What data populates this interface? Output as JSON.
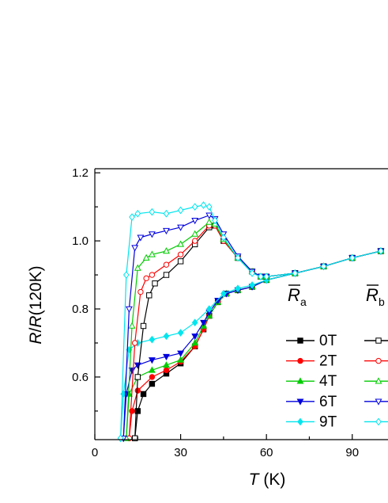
{
  "chart_data": {
    "type": "line",
    "ylabel": [
      "R",
      "/",
      "R",
      "(120K)"
    ],
    "xlabel": [
      "T",
      " (K)"
    ],
    "xlim": [
      0,
      102.5
    ],
    "xticks": [
      0,
      30,
      60,
      90
    ],
    "xminorticks": [
      15,
      45,
      75
    ],
    "ylim": [
      0.416,
      1.212
    ],
    "yticks": [
      0.6,
      0.8,
      {
        "value": 1,
        "label": "1.0"
      },
      1.2
    ],
    "yminorticks": [
      0.5,
      0.7,
      0.9,
      1.1
    ],
    "legend_groups": [
      {
        "symbol": "R",
        "subscript": "a"
      },
      {
        "symbol": "R",
        "subscript": "b"
      }
    ],
    "series": [
      {
        "name": "0T",
        "group": 0,
        "color": "#000000",
        "marker": "square",
        "filled": true,
        "x": [
          14,
          15,
          17,
          20,
          25,
          30,
          35,
          38,
          40,
          43,
          46,
          50,
          55,
          60,
          70,
          80,
          90,
          100
        ],
        "values": [
          0.42,
          0.5,
          0.55,
          0.58,
          0.61,
          0.64,
          0.69,
          0.74,
          0.78,
          0.82,
          0.845,
          0.855,
          0.865,
          0.885,
          0.905,
          0.925,
          0.95,
          0.97
        ]
      },
      {
        "name": "2T",
        "group": 0,
        "color": "#ff0000",
        "marker": "circle",
        "filled": true,
        "x": [
          12,
          13,
          15,
          20,
          25,
          30,
          35,
          38,
          40,
          43,
          46,
          50,
          55,
          60,
          70,
          80,
          90,
          100
        ],
        "values": [
          0.42,
          0.5,
          0.56,
          0.6,
          0.62,
          0.645,
          0.69,
          0.74,
          0.78,
          0.82,
          0.845,
          0.855,
          0.865,
          0.885,
          0.905,
          0.925,
          0.95,
          0.97
        ]
      },
      {
        "name": "4T",
        "group": 0,
        "color": "#00cc00",
        "marker": "triangle-up",
        "filled": true,
        "x": [
          11,
          12,
          15,
          20,
          25,
          30,
          35,
          38,
          40,
          43,
          46,
          50,
          55,
          60,
          70,
          80,
          90,
          100
        ],
        "values": [
          0.42,
          0.55,
          0.6,
          0.62,
          0.635,
          0.65,
          0.7,
          0.75,
          0.78,
          0.82,
          0.845,
          0.855,
          0.865,
          0.885,
          0.905,
          0.925,
          0.95,
          0.97
        ]
      },
      {
        "name": "6T",
        "group": 0,
        "color": "#0000dd",
        "marker": "triangle-down",
        "filled": true,
        "x": [
          10,
          11,
          13,
          15,
          20,
          25,
          30,
          35,
          38,
          40,
          43,
          46,
          50,
          55,
          60,
          70,
          80,
          90,
          100
        ],
        "values": [
          0.42,
          0.55,
          0.62,
          0.635,
          0.65,
          0.66,
          0.67,
          0.72,
          0.76,
          0.79,
          0.825,
          0.845,
          0.855,
          0.865,
          0.885,
          0.905,
          0.925,
          0.95,
          0.97
        ]
      },
      {
        "name": "9T",
        "group": 0,
        "color": "#00e5ee",
        "marker": "diamond",
        "filled": true,
        "x": [
          9,
          10,
          12,
          15,
          20,
          25,
          30,
          35,
          40,
          45,
          50,
          55,
          60,
          70,
          80,
          90,
          100
        ],
        "values": [
          0.42,
          0.55,
          0.68,
          0.7,
          0.71,
          0.72,
          0.73,
          0.76,
          0.8,
          0.845,
          0.86,
          0.87,
          0.885,
          0.905,
          0.925,
          0.95,
          0.97
        ]
      },
      {
        "group": 1,
        "color": "#000000",
        "marker": "square",
        "filled": false,
        "x": [
          14,
          15,
          17,
          19,
          21,
          25,
          30,
          35,
          40,
          42,
          45,
          50,
          55,
          58,
          60,
          70,
          80,
          90,
          100
        ],
        "values": [
          0.42,
          0.6,
          0.75,
          0.84,
          0.875,
          0.9,
          0.94,
          0.99,
          1.04,
          1.045,
          1.0,
          0.95,
          0.91,
          0.895,
          0.895,
          0.905,
          0.925,
          0.95,
          0.97
        ]
      },
      {
        "group": 1,
        "color": "#ff0000",
        "marker": "circle",
        "filled": false,
        "x": [
          12,
          14,
          16,
          18,
          20,
          25,
          30,
          35,
          40,
          42,
          45,
          50,
          55,
          58,
          60,
          70,
          80,
          90,
          100
        ],
        "values": [
          0.42,
          0.7,
          0.85,
          0.89,
          0.9,
          0.93,
          0.96,
          1.0,
          1.045,
          1.045,
          1.0,
          0.95,
          0.91,
          0.895,
          0.895,
          0.905,
          0.925,
          0.95,
          0.97
        ]
      },
      {
        "group": 1,
        "color": "#00cc00",
        "marker": "triangle-up",
        "filled": false,
        "x": [
          11,
          13,
          15,
          18,
          20,
          25,
          30,
          35,
          40,
          42,
          45,
          50,
          55,
          58,
          60,
          70,
          80,
          90,
          100
        ],
        "values": [
          0.42,
          0.75,
          0.92,
          0.95,
          0.96,
          0.97,
          0.99,
          1.02,
          1.055,
          1.05,
          1.005,
          0.95,
          0.91,
          0.895,
          0.895,
          0.905,
          0.925,
          0.95,
          0.97
        ]
      },
      {
        "group": 1,
        "color": "#0000dd",
        "marker": "triangle-down",
        "filled": false,
        "x": [
          10,
          12,
          14,
          16,
          20,
          25,
          30,
          35,
          40,
          42,
          45,
          50,
          55,
          58,
          60,
          70,
          80,
          90,
          100
        ],
        "values": [
          0.42,
          0.8,
          0.98,
          1.01,
          1.02,
          1.03,
          1.04,
          1.06,
          1.075,
          1.065,
          1.02,
          0.955,
          0.91,
          0.895,
          0.895,
          0.905,
          0.925,
          0.95,
          0.97
        ]
      },
      {
        "group": 1,
        "color": "#00e5ee",
        "marker": "diamond",
        "filled": false,
        "x": [
          9,
          11,
          13,
          15,
          20,
          25,
          30,
          35,
          38,
          40,
          42,
          45,
          50,
          55,
          58,
          60,
          70,
          80,
          90,
          100
        ],
        "values": [
          0.42,
          0.9,
          1.07,
          1.08,
          1.085,
          1.08,
          1.09,
          1.1,
          1.105,
          1.1,
          1.06,
          1.01,
          0.95,
          0.905,
          0.895,
          0.895,
          0.905,
          0.925,
          0.95,
          0.97
        ]
      }
    ]
  }
}
